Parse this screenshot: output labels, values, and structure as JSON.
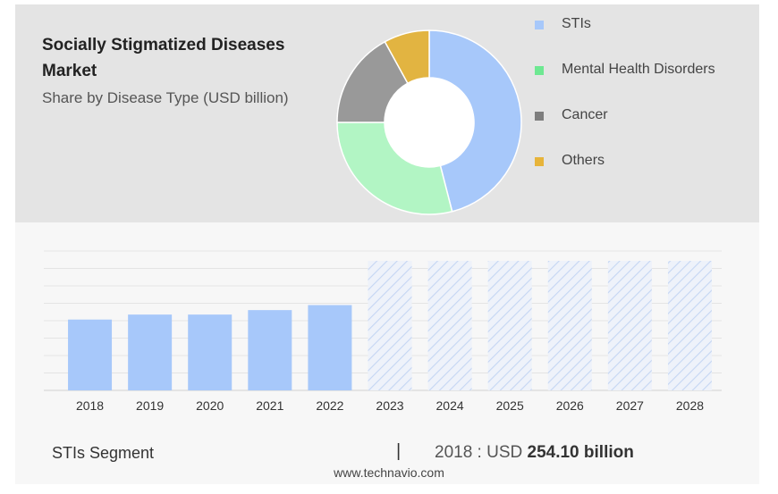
{
  "title": "Socially Stigmatized Diseases Market",
  "subtitle": "Share by Disease Type (USD billion)",
  "legend": [
    {
      "label": "STIs",
      "color": "#a7c8fa"
    },
    {
      "label": "Mental Health Disorders",
      "color": "#6ee892"
    },
    {
      "label": "Cancer",
      "color": "#7e7e7e"
    },
    {
      "label": "Others",
      "color": "#e7b43a"
    }
  ],
  "chart_data": [
    {
      "type": "pie",
      "variant": "donut",
      "title": "Socially Stigmatized Diseases Market",
      "subtitle": "Share by Disease Type (USD billion)",
      "categories": [
        "STIs",
        "Mental Health Disorders",
        "Cancer",
        "Others"
      ],
      "values": [
        46,
        29,
        17,
        8
      ],
      "colors": [
        "#a7c8fa",
        "#b2f5c4",
        "#999999",
        "#e2b441"
      ],
      "legend_position": "right"
    },
    {
      "type": "bar",
      "title": "STIs Segment",
      "categories": [
        "2018",
        "2019",
        "2020",
        "2021",
        "2022",
        "2023",
        "2024",
        "2025",
        "2026",
        "2027",
        "2028"
      ],
      "values": [
        254.1,
        272,
        272,
        288,
        306,
        null,
        null,
        null,
        null,
        null,
        null
      ],
      "forecast_years": [
        "2023",
        "2024",
        "2025",
        "2026",
        "2027",
        "2028"
      ],
      "ylim": [
        0,
        500
      ],
      "grid": true,
      "bar_color": "#a7c8fa",
      "forecast_color": "#c5d6f3"
    }
  ],
  "footer": {
    "segment": "STIs Segment",
    "divider": "|",
    "year_label": "2018 : USD",
    "value": "254.10 billion"
  },
  "source": "www.technavio.com"
}
